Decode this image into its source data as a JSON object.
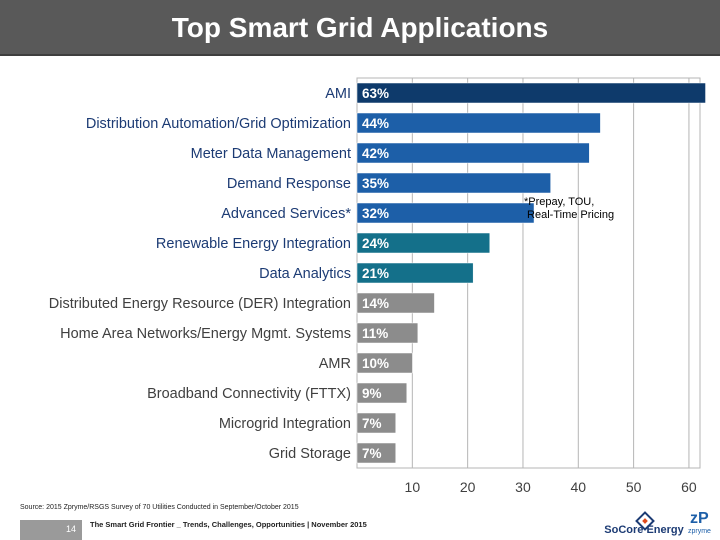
{
  "slide": {
    "title": "Top Smart Grid Applications",
    "note": "*Prepay, TOU,\n Real-Time Pricing",
    "source": "Source: 2015 Zpryme/RSGS Survey of 70 Utilities Conducted in September/October 2015",
    "page_number": "14",
    "footer_text": "The Smart Grid Frontier _ Trends, Challenges, Opportunities | November 2015",
    "logo_socore": "SoCore Energy",
    "logo_zpryme": "zpryme"
  },
  "chart_data": {
    "type": "bar",
    "orientation": "horizontal",
    "title": "Top Smart Grid Applications",
    "xlabel": "",
    "ylabel": "",
    "xlim": [
      0,
      62
    ],
    "xticks": [
      10,
      20,
      30,
      40,
      50,
      60
    ],
    "grid": true,
    "categories": [
      "AMI",
      "Distribution Automation/Grid Optimization",
      "Meter Data Management",
      "Demand Response",
      "Advanced Services*",
      "Renewable Energy Integration",
      "Data Analytics",
      "Distributed Energy Resource (DER) Integration",
      "Home Area Networks/Energy Mgmt. Systems",
      "AMR",
      "Broadband Connectivity (FTTX)",
      "Microgrid Integration",
      "Grid Storage"
    ],
    "values": [
      63,
      44,
      42,
      35,
      32,
      24,
      21,
      14,
      11,
      10,
      9,
      7,
      7
    ],
    "value_labels": [
      "63%",
      "44%",
      "42%",
      "35%",
      "32%",
      "24%",
      "21%",
      "14%",
      "11%",
      "10%",
      "9%",
      "7%",
      "7%"
    ],
    "bar_colors": [
      "#0e3a6b",
      "#1d5fa8",
      "#1d5fa8",
      "#1d5fa8",
      "#1d5fa8",
      "#14708a",
      "#14708a",
      "#8c8c8c",
      "#8c8c8c",
      "#8c8c8c",
      "#8c8c8c",
      "#8c8c8c",
      "#8c8c8c"
    ],
    "label_colors": [
      "#1c3b74",
      "#1c3b74",
      "#1c3b74",
      "#1c3b74",
      "#1c3b74",
      "#1c3b74",
      "#1c3b74",
      "#404040",
      "#404040",
      "#404040",
      "#404040",
      "#404040",
      "#404040"
    ]
  }
}
